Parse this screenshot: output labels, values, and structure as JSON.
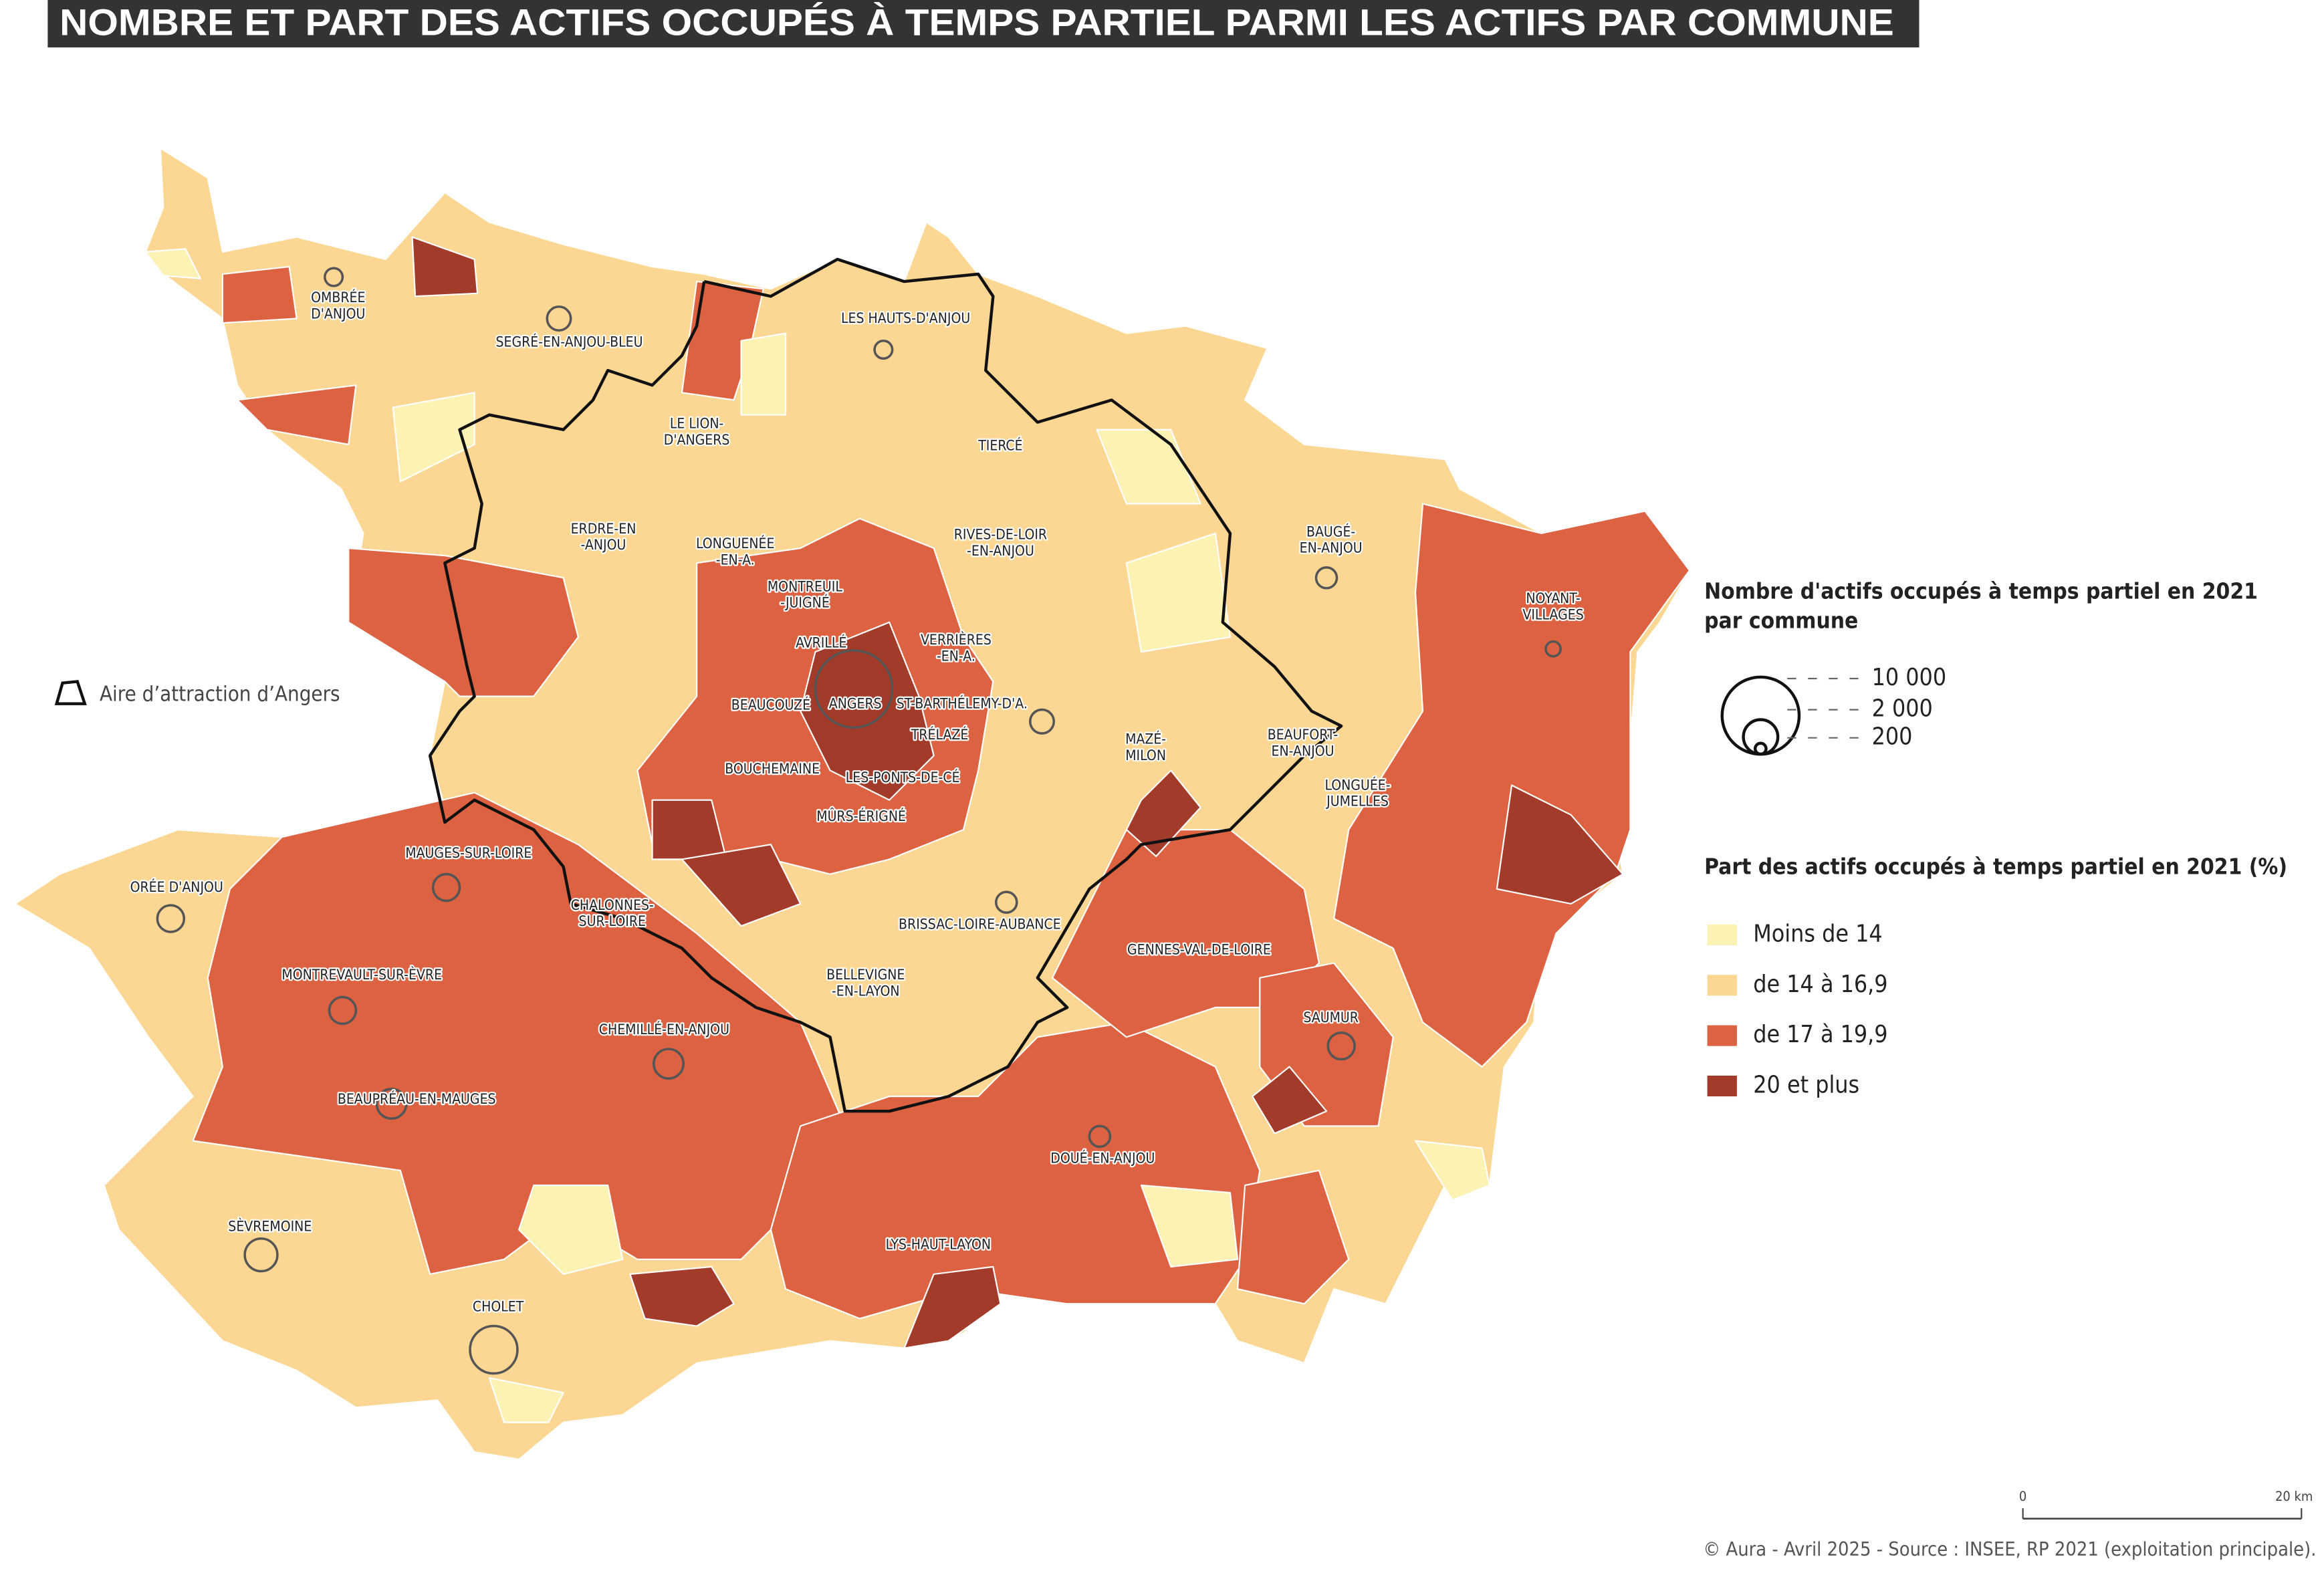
{
  "title": "NOMBRE ET PART DES ACTIFS OCCUPÉS À TEMPS PARTIEL PARMI LES ACTIFS PAR COMMUNE",
  "aire_label": "Aire d’attraction d’Angers",
  "labels": [
    {
      "lines": [
        "OMBRÉE",
        "D'ANJOU"
      ]
    },
    {
      "lines": [
        "SEGRÉ-EN-ANJOU-BLEU"
      ]
    },
    {
      "lines": [
        "LES HAUTS-D'ANJOU"
      ]
    },
    {
      "lines": [
        "LE LION-",
        "D'ANGERS"
      ]
    },
    {
      "lines": [
        "ERDRE-EN",
        "-ANJOU"
      ]
    },
    {
      "lines": [
        "LONGUENÉE",
        "-EN-A."
      ]
    },
    {
      "lines": [
        "MONTREUIL",
        "-JUIGNÉ"
      ]
    },
    {
      "lines": [
        "AVRILLÉ"
      ]
    },
    {
      "lines": [
        "ANGERS"
      ]
    },
    {
      "lines": [
        "ST-BARTHÉLEMY-D'A."
      ]
    },
    {
      "lines": [
        "BEAUCOUZÉ"
      ]
    },
    {
      "lines": [
        "TRÉLAZÉ"
      ]
    },
    {
      "lines": [
        "BOUCHEMAINE"
      ]
    },
    {
      "lines": [
        "LES-PONTS-DE-CÉ"
      ]
    },
    {
      "lines": [
        "MÛRS-ÉRIGNÉ"
      ]
    },
    {
      "lines": [
        "VERRIÈRES",
        "-EN-A."
      ]
    },
    {
      "lines": [
        "TIERCÉ"
      ]
    },
    {
      "lines": [
        "RIVES-DE-LOIR",
        "-EN-ANJOU"
      ]
    },
    {
      "lines": [
        "BAUGÉ-",
        "EN-ANJOU"
      ]
    },
    {
      "lines": [
        "NOYANT-",
        "VILLAGES"
      ]
    },
    {
      "lines": [
        "MAZÉ-",
        "MILON"
      ]
    },
    {
      "lines": [
        "BEAUFORT-",
        "EN-ANJOU"
      ]
    },
    {
      "lines": [
        "LONGUÉE-",
        "JUMELLES"
      ]
    },
    {
      "lines": [
        "ORÉE D'ANJOU"
      ]
    },
    {
      "lines": [
        "MAUGES-SUR-LOIRE"
      ]
    },
    {
      "lines": [
        "CHALONNES-",
        "SUR-LOIRE"
      ]
    },
    {
      "lines": [
        "BRISSAC-LOIRE-AUBANCE"
      ]
    },
    {
      "lines": [
        "GENNES-VAL-DE-LOIRE"
      ]
    },
    {
      "lines": [
        "MONTREVAULT-SUR-ÈVRE"
      ]
    },
    {
      "lines": [
        "BELLEVIGNE",
        "-EN-LAYON"
      ]
    },
    {
      "lines": [
        "CHEMILLÉ-EN-ANJOU"
      ]
    },
    {
      "lines": [
        "SAUMUR"
      ]
    },
    {
      "lines": [
        "BEAUPRÉAU-EN-MAUGES"
      ]
    },
    {
      "lines": [
        "DOUÉ-EN-ANJOU"
      ]
    },
    {
      "lines": [
        "SÈVREMOINE"
      ]
    },
    {
      "lines": [
        "LYS-HAUT-LAYON"
      ]
    },
    {
      "lines": [
        "CHOLET"
      ]
    }
  ],
  "legend": {
    "size_title": [
      "Nombre d'actifs occupés à temps partiel en 2021",
      "par commune"
    ],
    "size_ticks": [
      {
        "value": 10000,
        "label": "10 000"
      },
      {
        "value": 2000,
        "label": "2 000"
      },
      200
    ],
    "share_title": "Part des actifs occupés à temps partiel en 2021 (%)",
    "classes": [
      {
        "label": "Moins de 14",
        "color": "#fbf2b4"
      },
      {
        "label": "de 14 à 16,9",
        "color": "#fcd793"
      },
      {
        "label": "de 17 à 19,9",
        "color": "#dc6241"
      },
      {
        "label": "20 et plus",
        "color": "#a33b2a"
      }
    ]
  },
  "scale": {
    "start": "0",
    "end": "20 km"
  },
  "source": "© Aura - Avril 2025 - Source : INSEE, RP 2021 (exploitation principale)."
}
